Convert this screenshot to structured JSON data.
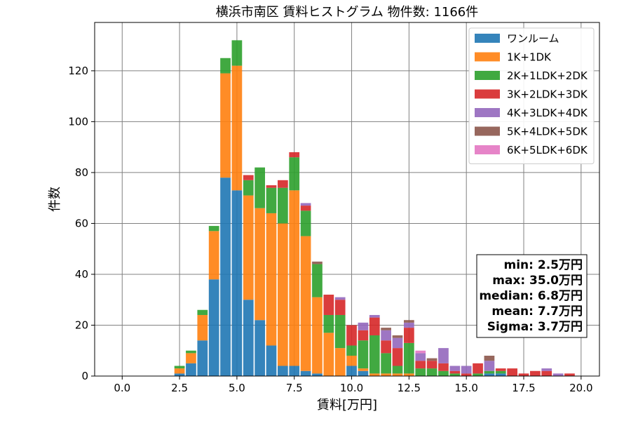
{
  "chart_data": {
    "type": "bar",
    "stacked": true,
    "title": "横浜市南区 賃料ヒストグラム  物件数: 1166件",
    "xlabel": "賃料[万円]",
    "ylabel": "件数",
    "xlim": [
      -1.2,
      20.8
    ],
    "ylim": [
      0,
      139
    ],
    "x_ticks": [
      0.0,
      2.5,
      5.0,
      7.5,
      10.0,
      12.5,
      15.0,
      17.5,
      20.0
    ],
    "x_tick_labels": [
      "0.0",
      "2.5",
      "5.0",
      "7.5",
      "10.0",
      "12.5",
      "15.0",
      "17.5",
      "20.0"
    ],
    "y_ticks": [
      0,
      20,
      40,
      60,
      80,
      100,
      120
    ],
    "y_tick_labels": [
      "0",
      "20",
      "40",
      "60",
      "80",
      "100",
      "120"
    ],
    "grid": true,
    "legend_position": "top-right",
    "bin_width": 0.5,
    "x": [
      2.5,
      3.0,
      3.5,
      4.0,
      4.5,
      5.0,
      5.5,
      6.0,
      6.5,
      7.0,
      7.5,
      8.0,
      8.5,
      9.0,
      9.5,
      10.0,
      10.5,
      11.0,
      11.5,
      12.0,
      12.5,
      13.0,
      13.5,
      14.0,
      14.5,
      15.0,
      15.5,
      16.0,
      16.5,
      17.0,
      17.5,
      18.0,
      18.5,
      19.0,
      19.5
    ],
    "series": [
      {
        "name": "ワンルーム",
        "color": "#1f77b4",
        "values": [
          1,
          5,
          14,
          38,
          78,
          73,
          30,
          22,
          12,
          4,
          4,
          2,
          1,
          0,
          0,
          4,
          2,
          0,
          0,
          0,
          0,
          0,
          0,
          0,
          0,
          0,
          0,
          1,
          1,
          0,
          0,
          0,
          0,
          0,
          0
        ]
      },
      {
        "name": "1K+1DK",
        "color": "#ff7f0e",
        "values": [
          2,
          4,
          10,
          19,
          41,
          49,
          41,
          44,
          52,
          56,
          69,
          53,
          30,
          17,
          11,
          4,
          1,
          1,
          1,
          1,
          1,
          0,
          0,
          0,
          0,
          0,
          0,
          0,
          0,
          0,
          0,
          0,
          0,
          0,
          0
        ]
      },
      {
        "name": "2K+1LDK+2DK",
        "color": "#2ca02c",
        "values": [
          1,
          1,
          2,
          2,
          6,
          10,
          6,
          16,
          10,
          14,
          13,
          10,
          13,
          7,
          13,
          4,
          11,
          15,
          8,
          3,
          12,
          3,
          3,
          2,
          1,
          0,
          1,
          1,
          1,
          0,
          0,
          0,
          0,
          0,
          0
        ]
      },
      {
        "name": "3K+2LDK+3DK",
        "color": "#d62728",
        "values": [
          0,
          0,
          0,
          0,
          0,
          0,
          2,
          0,
          1,
          3,
          2,
          2,
          0,
          8,
          6,
          8,
          4,
          7,
          5,
          7,
          6,
          3,
          3,
          3,
          1,
          1,
          4,
          0,
          1,
          3,
          1,
          2,
          2,
          0,
          1
        ]
      },
      {
        "name": "4K+3LDK+4DK",
        "color": "#9467bd",
        "values": [
          0,
          0,
          0,
          0,
          0,
          0,
          0,
          0,
          0,
          0,
          0,
          1,
          0,
          0,
          1,
          0,
          3,
          1,
          4,
          4,
          2,
          3,
          0,
          6,
          2,
          3,
          0,
          4,
          0,
          0,
          0,
          0,
          1,
          1,
          0
        ]
      },
      {
        "name": "5K+4LDK+5DK",
        "color": "#8c564b",
        "values": [
          0,
          0,
          0,
          0,
          0,
          0,
          0,
          0,
          0,
          0,
          0,
          0,
          1,
          0,
          0,
          0,
          0,
          0,
          1,
          1,
          1,
          0,
          1,
          0,
          0,
          0,
          0,
          2,
          0,
          0,
          0,
          0,
          0,
          0,
          0
        ]
      },
      {
        "name": "6K+5LDK+6DK",
        "color": "#e377c2",
        "values": [
          0,
          0,
          0,
          0,
          0,
          0,
          0,
          0,
          0,
          0,
          0,
          0,
          0,
          0,
          0,
          0,
          0,
          0,
          0,
          0,
          0,
          1,
          0,
          0,
          0,
          0,
          0,
          0,
          0,
          0,
          0,
          0,
          0,
          0,
          0
        ]
      }
    ],
    "stats_box": [
      "min: 2.5万円",
      "max: 35.0万円",
      "median: 6.8万円",
      "mean: 7.7万円",
      "Sigma: 3.7万円"
    ]
  }
}
